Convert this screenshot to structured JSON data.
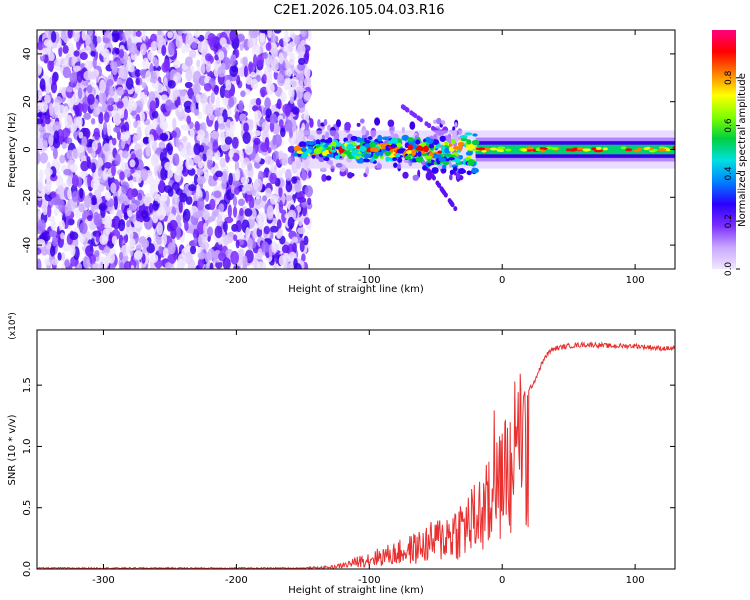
{
  "title": "C2E1.2026.105.04.03.R16",
  "chart_data": [
    {
      "type": "heatmap",
      "xlabel": "Height of straight line (km)",
      "ylabel": "Frequency (Hz)",
      "xlim": [
        -350,
        130
      ],
      "ylim": [
        -50,
        50
      ],
      "xticks": [
        -300,
        -200,
        -100,
        0,
        100
      ],
      "yticks": [
        -40,
        -20,
        0,
        20,
        40
      ],
      "colorbar": {
        "label": "Normalized spectral amplitude",
        "range": [
          0.0,
          1.0
        ],
        "ticks": [
          "0.0",
          "0.2",
          "0.4",
          "0.6",
          "0.8"
        ],
        "stops": [
          "#f0e6ff",
          "#c8a8ff",
          "#7b2cff",
          "#2a00ff",
          "#0080ff",
          "#00e0e0",
          "#00d040",
          "#80ff00",
          "#ffff00",
          "#ff8000",
          "#ff0000",
          "#ff0080"
        ]
      },
      "signal_band": {
        "noise_region_end_km": -145,
        "band_start_km": -155,
        "center_frequency_hz": 0,
        "band_width_hz": 8
      }
    },
    {
      "type": "line",
      "xlabel": "Height of straight line (km)",
      "ylabel": "SNR (10 * v/v)",
      "scale_label": "(x10⁴)",
      "xlim": [
        -350,
        130
      ],
      "ylim": [
        0,
        1.95
      ],
      "xticks": [
        -300,
        -200,
        -100,
        0,
        100
      ],
      "yticks": [
        "0.0",
        "0.5",
        "1.0",
        "1.5"
      ],
      "color": "#e83030",
      "series": [
        {
          "name": "SNR",
          "x": [
            -350,
            -300,
            -250,
            -200,
            -170,
            -150,
            -130,
            -120,
            -110,
            -100,
            -90,
            -80,
            -70,
            -60,
            -50,
            -40,
            -30,
            -20,
            -10,
            -5,
            0,
            5,
            10,
            15,
            20,
            25,
            30,
            35,
            40,
            50,
            60,
            70,
            80,
            90,
            100,
            110,
            120,
            130
          ],
          "values": [
            0.01,
            0.01,
            0.01,
            0.01,
            0.01,
            0.01,
            0.02,
            0.04,
            0.08,
            0.12,
            0.15,
            0.18,
            0.22,
            0.27,
            0.33,
            0.4,
            0.48,
            0.58,
            0.72,
            0.85,
            0.95,
            1.15,
            1.3,
            1.38,
            1.45,
            1.55,
            1.68,
            1.77,
            1.8,
            1.82,
            1.83,
            1.83,
            1.82,
            1.82,
            1.82,
            1.81,
            1.8,
            1.8
          ]
        }
      ]
    }
  ]
}
